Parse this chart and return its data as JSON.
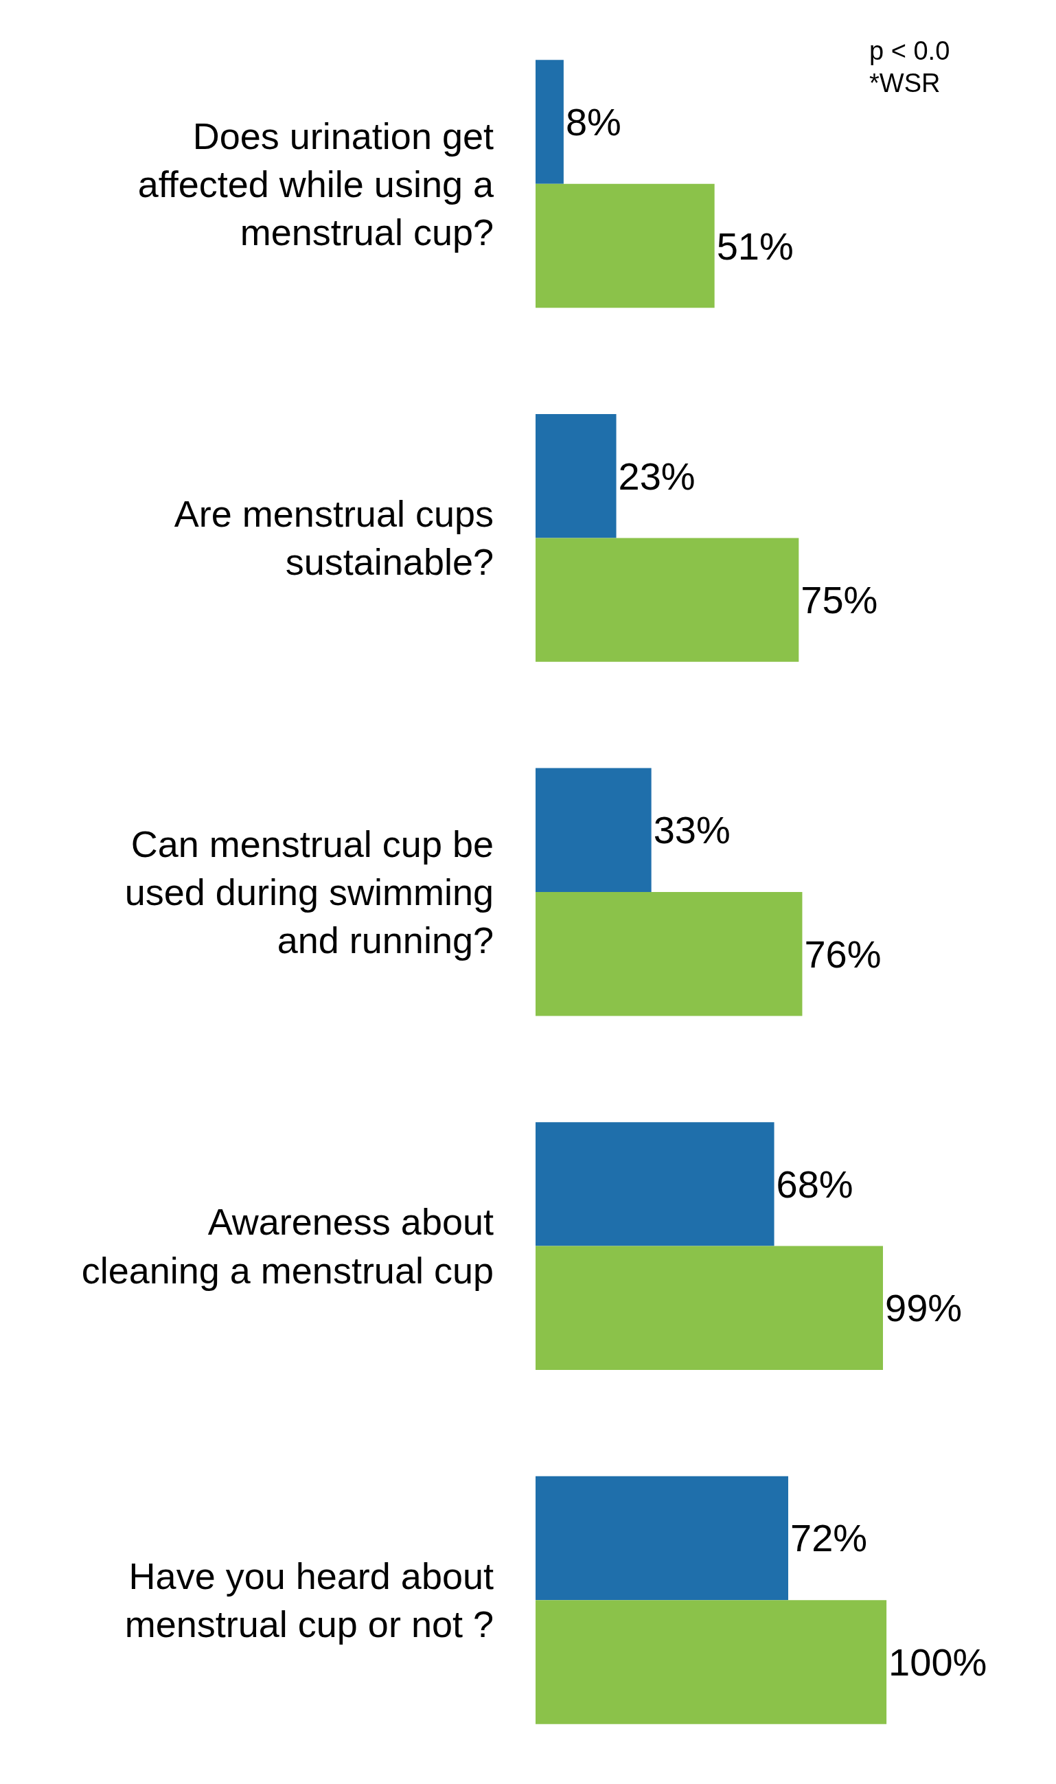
{
  "chart_data": {
    "type": "bar",
    "orientation": "horizontal",
    "categories": [
      "Does urination get\naffected while using a\nmenstrual cup?",
      "Are menstrual cups\nsustainable?",
      "Can menstrual cup be\nused during swimming\nand running?",
      "Awareness about\ncleaning a menstrual cup",
      "Have you heard about\nmenstrual cup or not ?"
    ],
    "series": [
      {
        "color": "#1f6fab",
        "values": [
          8,
          23,
          33,
          68,
          72
        ],
        "value_labels": [
          "8%",
          "23%",
          "33%",
          "68%",
          "72%"
        ]
      },
      {
        "color": "#8bc24a",
        "values": [
          51,
          75,
          76,
          99,
          100
        ],
        "value_labels": [
          "51%",
          "75%",
          "76%",
          "99%",
          "100%"
        ]
      }
    ],
    "tick_labels": "y",
    "annotations": [
      "p < 0.0",
      "*WSR"
    ]
  }
}
